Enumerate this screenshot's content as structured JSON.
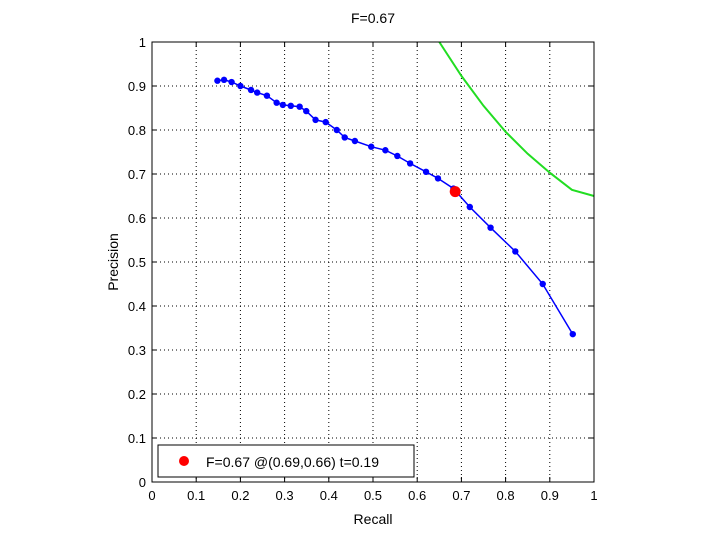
{
  "chart_data": {
    "type": "line",
    "title": "F=0.67",
    "xlabel": "Recall",
    "ylabel": "Precision",
    "xlim": [
      0,
      1
    ],
    "ylim": [
      0,
      1
    ],
    "xticks": [
      "0",
      "0.1",
      "0.2",
      "0.3",
      "0.4",
      "0.5",
      "0.6",
      "0.7",
      "0.8",
      "0.9",
      "1"
    ],
    "yticks": [
      "0",
      "0.1",
      "0.2",
      "0.3",
      "0.4",
      "0.5",
      "0.6",
      "0.7",
      "0.8",
      "0.9",
      "1"
    ],
    "grid": true,
    "legend_position": "bottom-left",
    "series": [
      {
        "color": "#0000ff",
        "marker": "dot",
        "x": [
          0.148,
          0.163,
          0.18,
          0.2,
          0.224,
          0.238,
          0.26,
          0.282,
          0.296,
          0.314,
          0.334,
          0.349,
          0.37,
          0.393,
          0.418,
          0.436,
          0.459,
          0.496,
          0.528,
          0.555,
          0.584,
          0.62,
          0.647,
          0.682,
          0.719,
          0.766,
          0.822,
          0.884,
          0.952
        ],
        "y": [
          0.912,
          0.914,
          0.909,
          0.9,
          0.891,
          0.885,
          0.878,
          0.862,
          0.857,
          0.855,
          0.853,
          0.843,
          0.823,
          0.818,
          0.8,
          0.783,
          0.775,
          0.762,
          0.754,
          0.741,
          0.724,
          0.705,
          0.69,
          0.667,
          0.625,
          0.578,
          0.524,
          0.45,
          0.336
        ]
      },
      {
        "color": "#22dd22",
        "marker": "none",
        "iso_f": 0.67,
        "x": [
          0.65,
          0.7,
          0.75,
          0.8,
          0.85,
          0.9,
          0.95,
          1.0
        ],
        "y": [
          1.0,
          0.923,
          0.855,
          0.796,
          0.746,
          0.703,
          0.664,
          0.65
        ]
      }
    ],
    "best_point": {
      "recall": 0.686,
      "precision": 0.66,
      "color": "#ff0000"
    },
    "legend": {
      "label": "F=0.67 @(0.69,0.66) t=0.19",
      "marker_color": "#ff0000"
    }
  }
}
